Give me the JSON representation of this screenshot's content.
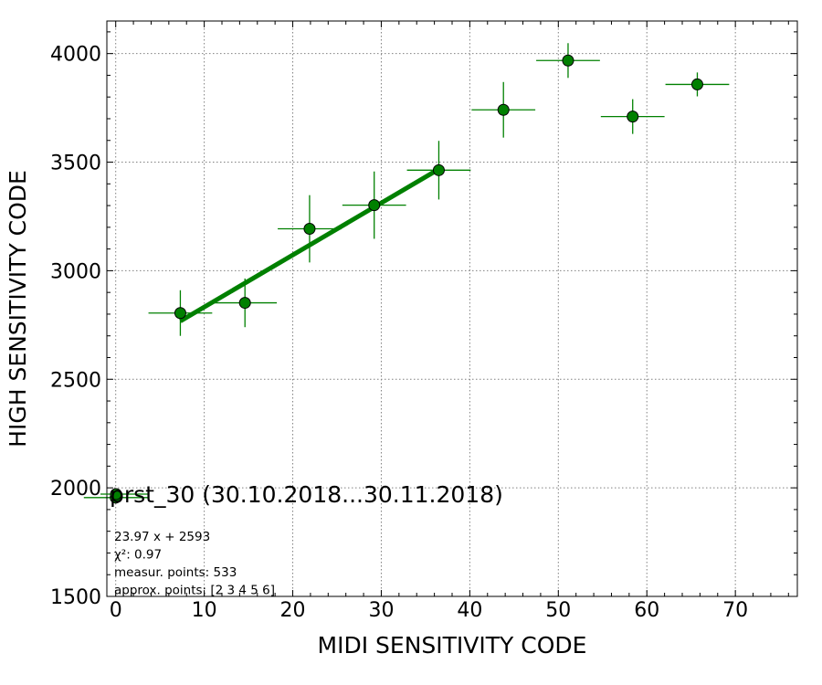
{
  "chart_data": {
    "type": "scatter",
    "xlabel": "MIDI SENSITIVITY CODE",
    "ylabel": "HIGH SENSITIVITY CODE",
    "xlim": [
      -1,
      77
    ],
    "ylim": [
      1500,
      4150
    ],
    "xticks": [
      0,
      10,
      20,
      30,
      40,
      50,
      60,
      70
    ],
    "yticks": [
      1500,
      2000,
      2500,
      3000,
      3500,
      4000
    ],
    "xticks_minor_step": 2,
    "yticks_minor_step": 100,
    "grid": true,
    "legend": {
      "placement": "lower-left",
      "label": "prst_30 (30.10.2018...30.11.2018)"
    },
    "series": [
      {
        "name": "prst_30 (30.10.2018...30.11.2018)",
        "color": "#008000",
        "points": [
          {
            "x": 0.0,
            "y": 1955,
            "xerr": 3.6,
            "yerr": 0
          },
          {
            "x": 7.3,
            "y": 2805,
            "xerr": 3.6,
            "yerr": 105
          },
          {
            "x": 14.6,
            "y": 2852,
            "xerr": 3.6,
            "yerr": 112
          },
          {
            "x": 21.9,
            "y": 3193,
            "xerr": 3.6,
            "yerr": 155
          },
          {
            "x": 29.2,
            "y": 3302,
            "xerr": 3.6,
            "yerr": 155
          },
          {
            "x": 36.5,
            "y": 3463,
            "xerr": 3.6,
            "yerr": 135
          },
          {
            "x": 43.8,
            "y": 3741,
            "xerr": 3.6,
            "yerr": 128
          },
          {
            "x": 51.1,
            "y": 3968,
            "xerr": 3.6,
            "yerr": 80
          },
          {
            "x": 58.4,
            "y": 3710,
            "xerr": 3.6,
            "yerr": 80
          },
          {
            "x": 65.7,
            "y": 3858,
            "xerr": 3.6,
            "yerr": 55
          }
        ]
      }
    ],
    "fit": {
      "slope": 23.97,
      "intercept": 2593,
      "x_range": [
        7.3,
        36.5
      ],
      "color": "#008000"
    },
    "annotations": [
      "23.97 x + 2593",
      "χ²: 0.97",
      "measur. points: 533",
      "approx. points: [2 3 4 5 6]"
    ]
  }
}
